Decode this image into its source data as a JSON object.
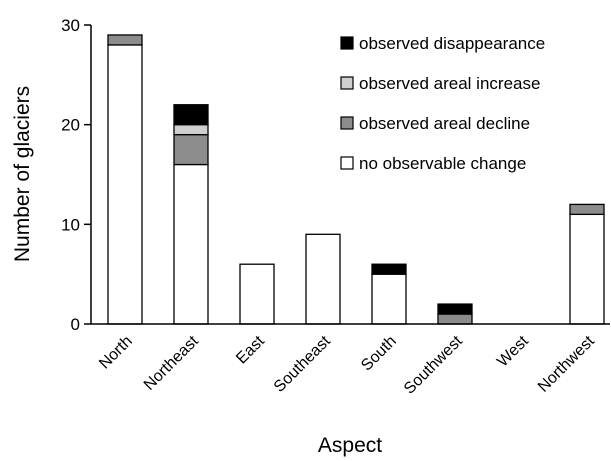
{
  "chart_data": {
    "type": "bar",
    "stacked": true,
    "xlabel": "Aspect",
    "ylabel": "Number of glaciers",
    "ylim": [
      0,
      30
    ],
    "yticks": [
      0,
      10,
      20,
      30
    ],
    "categories": [
      "North",
      "Northeast",
      "East",
      "Southeast",
      "South",
      "Southwest",
      "West",
      "Northwest"
    ],
    "series": [
      {
        "name": "no observable change",
        "color": "#ffffff",
        "values": [
          28,
          16,
          6,
          9,
          5,
          0,
          0,
          11
        ]
      },
      {
        "name": "observed areal decline",
        "color": "#8c8c8c",
        "values": [
          1,
          3,
          0,
          0,
          0,
          1,
          0,
          1
        ]
      },
      {
        "name": "observed areal increase",
        "color": "#cfcfcf",
        "values": [
          0,
          1,
          0,
          0,
          0,
          0,
          0,
          0
        ]
      },
      {
        "name": "observed disappearance",
        "color": "#000000",
        "values": [
          0,
          2,
          0,
          0,
          1,
          1,
          0,
          0
        ]
      }
    ],
    "legend_order": [
      "observed disappearance",
      "observed areal increase",
      "observed areal decline",
      "no observable change"
    ],
    "legend_position": "top-right",
    "grid": false
  }
}
